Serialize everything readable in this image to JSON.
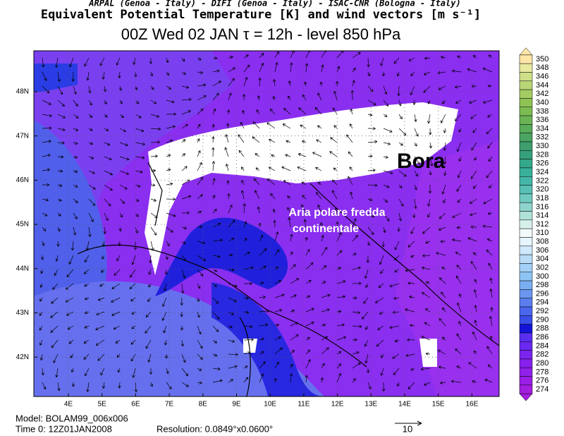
{
  "header": {
    "line1": "ARPAL (Genoa - Italy)  -  DIFI (Genoa - Italy)  -  ISAC-CNR (Bologna - Italy)",
    "line2": "Equivalent Potential Temperature [K] and wind vectors [m s⁻¹]",
    "line3": "00Z Wed 02 JAN   τ = 12h   -   level 850 hPa"
  },
  "map": {
    "lon_labels": [
      "4E",
      "5E",
      "6E",
      "7E",
      "8E",
      "9E",
      "10E",
      "11E",
      "12E",
      "13E",
      "14E",
      "15E",
      "16E"
    ],
    "lat_labels": [
      "48N",
      "47N",
      "46N",
      "45N",
      "44N",
      "43N",
      "42N"
    ],
    "annotations": [
      "Bora",
      "Aria polare fredda",
      "continentale"
    ]
  },
  "colorbar": {
    "labels": [
      350,
      348,
      346,
      344,
      342,
      340,
      338,
      336,
      334,
      332,
      330,
      328,
      326,
      324,
      322,
      320,
      318,
      316,
      314,
      312,
      310,
      308,
      306,
      304,
      302,
      300,
      298,
      296,
      294,
      292,
      290,
      288,
      286,
      284,
      282,
      280,
      278,
      276,
      274
    ],
    "colors": [
      "#fde6a8",
      "#e8eaa0",
      "#cfe08a",
      "#b8d676",
      "#a4cc62",
      "#8fc254",
      "#7cbc52",
      "#6ab456",
      "#58ac5a",
      "#4aa462",
      "#3e9e6e",
      "#36a07c",
      "#34a88c",
      "#38b09a",
      "#44b8a8",
      "#58c0b4",
      "#70cac0",
      "#8ed4cc",
      "#b0e2da",
      "#d8f0ec",
      "#f2fafa",
      "#e6f4fc",
      "#cfe8fa",
      "#b8dcf8",
      "#a2d0f6",
      "#8ec4f4",
      "#7aaef2",
      "#6a96f0",
      "#5a7eee",
      "#4a66ec",
      "#3a4ee8",
      "#1414d8",
      "#5a2ef0",
      "#6a28f0",
      "#7a24ee",
      "#8620ec",
      "#9020ea",
      "#9a1ee6",
      "#a41ee0"
    ]
  },
  "footer": {
    "model": "Model: BOLAM99_006x006",
    "time": "Time 0: 12Z01JAN2008",
    "resolution": "Resolution: 0.0849°x0.0600°",
    "vector_scale": "10"
  }
}
